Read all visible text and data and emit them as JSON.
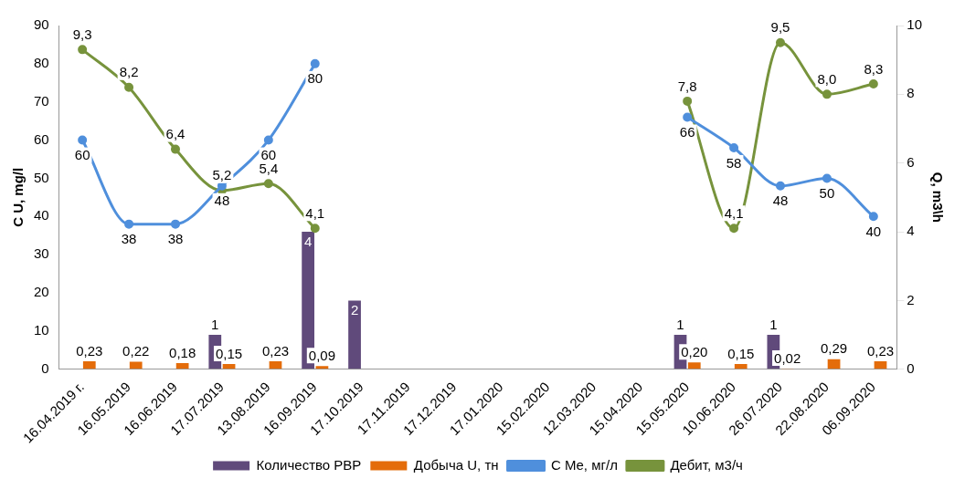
{
  "chart_data": {
    "type": "bar",
    "ylabel": "C U, mg/l",
    "y2label": "Q, m3\\h",
    "categories": [
      "16.04.2019 г.",
      "16.05.2019",
      "16.06.2019",
      "17.07.2019",
      "13.08.2019",
      "16.09.2019",
      "17.10.2019",
      "17.11.2019",
      "17.12.2019",
      "17.01.2020",
      "15.02.2020",
      "12.03.2020",
      "15.04.2020",
      "15.05.2020",
      "10.06.2020",
      "26.07.2020",
      "22.08.2020",
      "06.09.2020"
    ],
    "series": [
      {
        "name": "Количество РВР",
        "type": "bar",
        "axis": "y2",
        "color": "#604a7b",
        "values": [
          null,
          null,
          null,
          1,
          null,
          4,
          2,
          null,
          null,
          null,
          null,
          null,
          null,
          1,
          null,
          1,
          null,
          null
        ],
        "value_labels": [
          null,
          null,
          null,
          "1",
          null,
          "4",
          "2",
          null,
          null,
          null,
          null,
          null,
          null,
          "1",
          null,
          "1",
          null,
          null
        ]
      },
      {
        "name": "Добыча U, тн",
        "type": "bar",
        "axis": "y2",
        "color": "#e46c0a",
        "values": [
          0.23,
          0.22,
          0.18,
          0.15,
          0.23,
          0.09,
          null,
          null,
          null,
          null,
          null,
          null,
          null,
          0.2,
          0.15,
          0.02,
          0.29,
          0.23
        ],
        "value_labels": [
          "0,23",
          "0,22",
          "0,18",
          "0,15",
          "0,23",
          "0,09",
          null,
          null,
          null,
          null,
          null,
          null,
          null,
          "0,20",
          "0,15",
          "0,02",
          "0,29",
          "0,23"
        ]
      },
      {
        "name": "C Me, мг/л",
        "type": "line",
        "color": "#4f8fdc",
        "values": [
          60,
          38,
          38,
          48,
          60,
          80,
          null,
          null,
          null,
          null,
          null,
          null,
          null,
          66,
          58,
          48,
          50,
          40
        ],
        "value_labels": [
          "60",
          "38",
          "38",
          "48",
          "60",
          "80",
          null,
          null,
          null,
          null,
          null,
          null,
          null,
          "66",
          "58",
          "48",
          "50",
          "40"
        ]
      },
      {
        "name": "Дебит, м3/ч",
        "type": "line",
        "axis": "y2",
        "color": "#77933c",
        "values": [
          9.3,
          8.2,
          6.4,
          5.2,
          5.4,
          4.1,
          null,
          null,
          null,
          null,
          null,
          null,
          null,
          7.8,
          4.1,
          9.5,
          8.0,
          8.3
        ],
        "value_labels": [
          "9,3",
          "8,2",
          "6,4",
          "5,2",
          "5,4",
          "4,1",
          null,
          null,
          null,
          null,
          null,
          null,
          null,
          "7,8",
          "4,1",
          "9,5",
          "8,0",
          "8,3"
        ]
      }
    ],
    "ylim": [
      0,
      90
    ],
    "yticks": [
      0,
      10,
      20,
      30,
      40,
      50,
      60,
      70,
      80,
      90
    ],
    "y2lim": [
      0,
      10
    ],
    "y2ticks": [
      0,
      2,
      4,
      6,
      8,
      10
    ],
    "grid": false,
    "legend": "bottom",
    "marker": "circle"
  }
}
